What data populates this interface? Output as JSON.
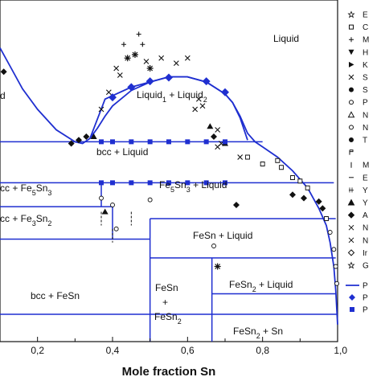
{
  "chart_data": {
    "type": "scatter",
    "title": "",
    "xlabel": "Mole fraction Sn",
    "ylabel": "",
    "xlim": [
      0.1,
      1.0
    ],
    "x_ticks": [
      {
        "value": 0.2,
        "label": "0,2"
      },
      {
        "value": 0.4,
        "label": "0,4"
      },
      {
        "value": 0.6,
        "label": "0,6"
      },
      {
        "value": 0.8,
        "label": "0,8"
      },
      {
        "value": 1.0,
        "label": "1,0"
      }
    ],
    "grid": false,
    "legend_position": "right",
    "colors": {
      "model": "#1f2fd0",
      "experiment": "#111111"
    },
    "phase_regions": [
      {
        "id": "liquid",
        "label": "Liquid"
      },
      {
        "id": "liquid-liquid",
        "label": "Liquid",
        "sub1": "1",
        "mid": " + Liquid",
        "sub2": "2"
      },
      {
        "id": "d-fragment",
        "label": "d"
      },
      {
        "id": "bcc-liquid",
        "label": "bcc + Liquid"
      },
      {
        "id": "bcc-fe5sn3",
        "label": "cc + Fe",
        "sub1": "5",
        "mid": "Sn",
        "sub2": "3"
      },
      {
        "id": "fe5sn3-liquid",
        "label": "Fe",
        "sub1": "5",
        "mid": "Sn",
        "sub2": "3",
        "tail": " + Liquid"
      },
      {
        "id": "bcc-fe3sn2",
        "label": "cc + Fe",
        "sub1": "3",
        "mid": "Sn",
        "sub2": "2"
      },
      {
        "id": "fesn-liquid",
        "label": "FeSn + Liquid"
      },
      {
        "id": "bcc-fesn",
        "label": "bcc + FeSn"
      },
      {
        "id": "fesn-fesn2-a",
        "label": "FeSn"
      },
      {
        "id": "fesn-fesn2-b",
        "label": "+"
      },
      {
        "id": "fesn-fesn2-c",
        "label": "FeSn",
        "sub1": "2"
      },
      {
        "id": "fesn2-liquid",
        "label": "FeSn",
        "sub1": "2",
        "tail": " + Liquid"
      },
      {
        "id": "fesn2-sn",
        "label": "FeSn",
        "sub1": "2",
        "tail": " + Sn"
      }
    ],
    "legend_experiment_labels": [
      "E",
      "C",
      "M",
      "H",
      "K",
      "S",
      "S",
      "P",
      "N",
      "N",
      "T",
      "",
      "M",
      "E",
      "Y",
      "Y",
      "A",
      "N",
      "N",
      "Ir",
      "G"
    ],
    "legend_model_labels": [
      "P",
      "P",
      "P"
    ],
    "liquidus_calc": [
      [
        0.1,
        0.86
      ],
      [
        0.13,
        0.8
      ],
      [
        0.16,
        0.74
      ],
      [
        0.2,
        0.68
      ],
      [
        0.25,
        0.62
      ],
      [
        0.3,
        0.585
      ],
      [
        0.32,
        0.58
      ],
      [
        0.34,
        0.595
      ],
      [
        0.36,
        0.625
      ],
      [
        0.38,
        0.66
      ],
      [
        0.4,
        0.69
      ],
      [
        0.45,
        0.735
      ],
      [
        0.5,
        0.76
      ],
      [
        0.55,
        0.775
      ],
      [
        0.6,
        0.775
      ],
      [
        0.65,
        0.76
      ],
      [
        0.7,
        0.725
      ],
      [
        0.72,
        0.7
      ],
      [
        0.74,
        0.66
      ],
      [
        0.76,
        0.61
      ],
      [
        0.78,
        0.585
      ],
      [
        0.8,
        0.57
      ],
      [
        0.84,
        0.54
      ],
      [
        0.88,
        0.5
      ],
      [
        0.92,
        0.45
      ],
      [
        0.95,
        0.39
      ],
      [
        0.97,
        0.34
      ],
      [
        0.98,
        0.29
      ],
      [
        0.99,
        0.22
      ],
      [
        0.995,
        0.15
      ],
      [
        1.0,
        0.05
      ]
    ],
    "monotectic_points": [
      0.37,
      0.4,
      0.45,
      0.5,
      0.55,
      0.6,
      0.65,
      0.7
    ],
    "eutectoid_points": [
      0.37,
      0.4,
      0.45,
      0.5,
      0.55,
      0.6,
      0.65,
      0.7
    ],
    "miscibility_points": [
      [
        0.4,
        0.715
      ],
      [
        0.45,
        0.745
      ],
      [
        0.5,
        0.762
      ],
      [
        0.55,
        0.773
      ],
      [
        0.65,
        0.762
      ],
      [
        0.7,
        0.73
      ]
    ],
    "experimental_points": [
      {
        "x": 0.44,
        "y": 0.83,
        "m": "star"
      },
      {
        "x": 0.46,
        "y": 0.84,
        "m": "star"
      },
      {
        "x": 0.5,
        "y": 0.8,
        "m": "star"
      },
      {
        "x": 0.41,
        "y": 0.8,
        "m": "x"
      },
      {
        "x": 0.42,
        "y": 0.78,
        "m": "x"
      },
      {
        "x": 0.49,
        "y": 0.82,
        "m": "x"
      },
      {
        "x": 0.53,
        "y": 0.83,
        "m": "x"
      },
      {
        "x": 0.57,
        "y": 0.815,
        "m": "x"
      },
      {
        "x": 0.6,
        "y": 0.83,
        "m": "x"
      },
      {
        "x": 0.39,
        "y": 0.73,
        "m": "x"
      },
      {
        "x": 0.43,
        "y": 0.87,
        "m": "plus"
      },
      {
        "x": 0.47,
        "y": 0.9,
        "m": "plus"
      },
      {
        "x": 0.48,
        "y": 0.87,
        "m": "plus"
      },
      {
        "x": 0.63,
        "y": 0.71,
        "m": "x"
      },
      {
        "x": 0.64,
        "y": 0.69,
        "m": "x"
      },
      {
        "x": 0.66,
        "y": 0.63,
        "m": "triangle"
      },
      {
        "x": 0.67,
        "y": 0.6,
        "m": "diamond"
      },
      {
        "x": 0.69,
        "y": 0.58,
        "m": "x"
      },
      {
        "x": 0.68,
        "y": 0.62,
        "m": "x"
      },
      {
        "x": 0.62,
        "y": 0.68,
        "m": "x"
      },
      {
        "x": 0.33,
        "y": 0.6,
        "m": "diamond"
      },
      {
        "x": 0.31,
        "y": 0.59,
        "m": "diamond"
      },
      {
        "x": 0.35,
        "y": 0.6,
        "m": "triangle"
      },
      {
        "x": 0.37,
        "y": 0.68,
        "m": "x"
      },
      {
        "x": 0.29,
        "y": 0.58,
        "m": "diamond"
      },
      {
        "x": 0.11,
        "y": 0.79,
        "m": "diamond"
      },
      {
        "x": 0.68,
        "y": 0.57,
        "m": "x"
      },
      {
        "x": 0.7,
        "y": 0.58,
        "m": "triangle"
      },
      {
        "x": 0.74,
        "y": 0.54,
        "m": "x"
      },
      {
        "x": 0.76,
        "y": 0.54,
        "m": "square"
      },
      {
        "x": 0.8,
        "y": 0.52,
        "m": "square"
      },
      {
        "x": 0.85,
        "y": 0.51,
        "m": "square"
      },
      {
        "x": 0.88,
        "y": 0.48,
        "m": "square"
      },
      {
        "x": 0.9,
        "y": 0.47,
        "m": "square"
      },
      {
        "x": 0.92,
        "y": 0.45,
        "m": "square"
      },
      {
        "x": 0.88,
        "y": 0.43,
        "m": "diamond"
      },
      {
        "x": 0.91,
        "y": 0.42,
        "m": "diamond"
      },
      {
        "x": 0.95,
        "y": 0.41,
        "m": "diamond"
      },
      {
        "x": 0.96,
        "y": 0.39,
        "m": "diamond"
      },
      {
        "x": 0.97,
        "y": 0.36,
        "m": "square"
      },
      {
        "x": 0.98,
        "y": 0.32,
        "m": "circle"
      },
      {
        "x": 0.99,
        "y": 0.27,
        "m": "circle"
      },
      {
        "x": 0.995,
        "y": 0.22,
        "m": "circle"
      },
      {
        "x": 0.998,
        "y": 0.17,
        "m": "circle"
      },
      {
        "x": 0.84,
        "y": 0.53,
        "m": "square"
      },
      {
        "x": 0.73,
        "y": 0.4,
        "m": "diamond"
      },
      {
        "x": 0.37,
        "y": 0.42,
        "m": "circle"
      },
      {
        "x": 0.38,
        "y": 0.38,
        "m": "triangle"
      },
      {
        "x": 0.4,
        "y": 0.4,
        "m": "circle"
      },
      {
        "x": 0.41,
        "y": 0.33,
        "m": "circle"
      },
      {
        "x": 0.5,
        "y": 0.415,
        "m": "circle"
      },
      {
        "x": 0.67,
        "y": 0.28,
        "m": "circle"
      },
      {
        "x": 0.68,
        "y": 0.22,
        "m": "star"
      }
    ]
  }
}
